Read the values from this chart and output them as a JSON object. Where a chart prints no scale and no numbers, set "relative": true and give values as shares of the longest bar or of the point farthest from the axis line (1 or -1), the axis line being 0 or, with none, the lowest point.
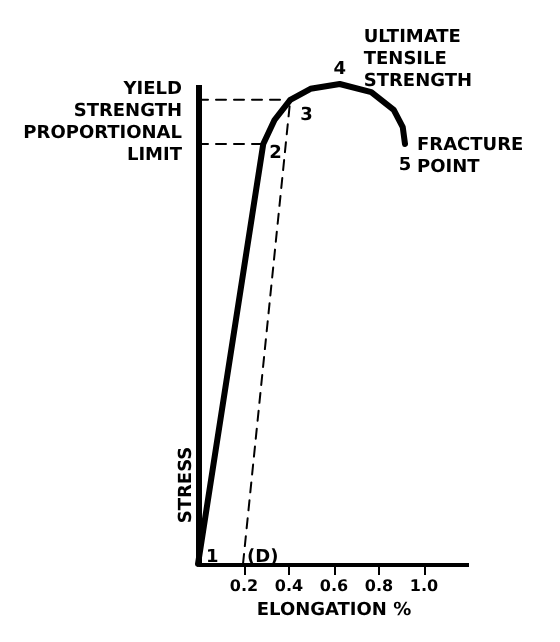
{
  "chart_data": {
    "type": "line",
    "relative": true,
    "xlabel": "ELONGATION %",
    "ylabel": "STRESS",
    "xlim": [
      0,
      1.2
    ],
    "xticks": [
      0.2,
      0.4,
      0.6,
      0.8,
      {
        "value": 1,
        "label": "1.0"
      }
    ],
    "grid": false,
    "series": [
      {
        "color": "#000000",
        "line_style": "solid",
        "x": [
          0,
          0.29,
          0.34,
          0.41,
          0.5,
          0.63,
          0.77,
          0.87,
          0.91,
          0.92
        ],
        "values": [
          0,
          0.875,
          0.925,
          0.967,
          0.99,
          1.0,
          0.983,
          0.946,
          0.91,
          0.875
        ]
      },
      {
        "color": "#000000",
        "line_style": "dashed",
        "x": [
          0.2,
          0.41
        ],
        "values": [
          0,
          0.967
        ]
      },
      {
        "color": "#000000",
        "line_style": "dashed",
        "x": [
          0,
          0.29
        ],
        "values": [
          0.875,
          0.875
        ]
      },
      {
        "color": "#000000",
        "line_style": "dashed",
        "x": [
          0,
          0.41
        ],
        "values": [
          0.967,
          0.967
        ]
      }
    ],
    "annotations": [
      {
        "text": "1",
        "x": 0,
        "y": 0
      },
      {
        "text": "2",
        "x": 0.29,
        "y": 0.875
      },
      {
        "text": "3",
        "x": 0.41,
        "y": 0.967
      },
      {
        "text": "4",
        "x": 0.63,
        "y": 1.0
      },
      {
        "text": "5",
        "x": 0.92,
        "y": 0.875
      },
      {
        "text": "(D)",
        "x": 0.2,
        "y": 0
      },
      {
        "text": "YIELD\nSTRENGTH",
        "x": 0,
        "y": 0.967
      },
      {
        "text": "PROPORTIONAL\nLIMIT",
        "x": 0,
        "y": 0.875
      },
      {
        "text": "ULTIMATE\nTENSILE\nSTRENGTH",
        "x": 0.63,
        "y": 1.0
      },
      {
        "text": "FRACTURE\nPOINT",
        "x": 0.92,
        "y": 0.875
      }
    ]
  }
}
